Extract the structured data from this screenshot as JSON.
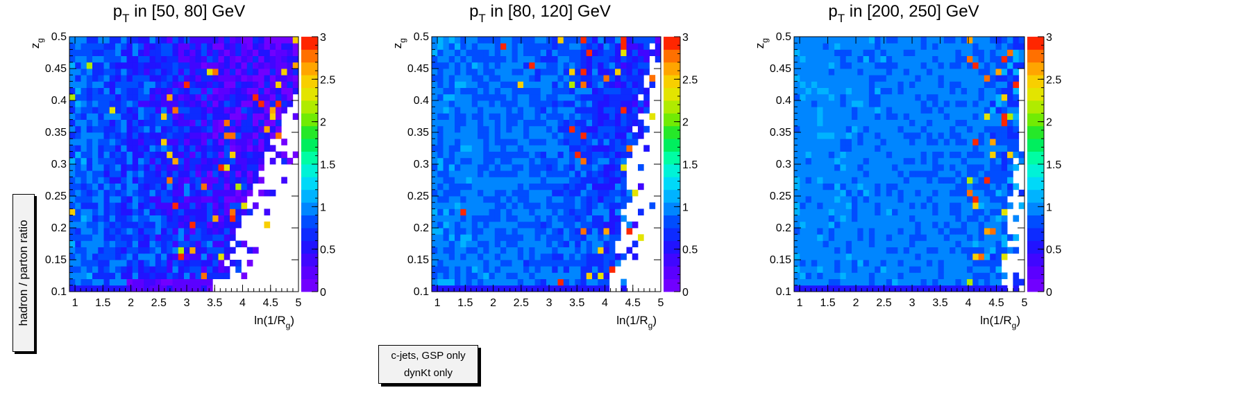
{
  "figure": {
    "ylabel_box": "hadron / parton ratio",
    "note_lines": [
      "c-jets, GSP only",
      "dynKt only"
    ]
  },
  "chart_data": [
    {
      "type": "heatmap",
      "title_base": "p",
      "title_sub": "T",
      "title_rest": " in [50, 80] GeV",
      "xlabel": "ln(1/R",
      "xlabel_sub": "g",
      "xlabel_end": ")",
      "ylabel": "z",
      "ylabel_sub": "g",
      "xlim": [
        0.9,
        5.0
      ],
      "ylim": [
        0.1,
        0.5
      ],
      "xticks": [
        "1",
        "1.5",
        "2",
        "2.5",
        "3",
        "3.5",
        "4",
        "4.5",
        "5"
      ],
      "yticks": [
        "0.1",
        "0.15",
        "0.2",
        "0.25",
        "0.3",
        "0.35",
        "0.4",
        "0.45",
        "0.5"
      ],
      "zlim": [
        0,
        3
      ],
      "zticks": [
        "0",
        "0.5",
        "1",
        "1.5",
        "2",
        "2.5",
        "3"
      ],
      "grid": {
        "nx": 40,
        "ny": 40,
        "seed": 11
      },
      "notes": "Ratio ~0.7-1.0 at low ln(1/Rg); falls to ~0.3 (violet/blue) at large ln(1/Rg) with sparse red outliers; empty region at large ln(1/Rg), low zg."
    },
    {
      "type": "heatmap",
      "title_base": "p",
      "title_sub": "T",
      "title_rest": " in [80, 120] GeV",
      "xlabel": "ln(1/R",
      "xlabel_sub": "g",
      "xlabel_end": ")",
      "ylabel": "z",
      "ylabel_sub": "g",
      "xlim": [
        0.9,
        5.0
      ],
      "ylim": [
        0.1,
        0.5
      ],
      "xticks": [
        "1",
        "1.5",
        "2",
        "2.5",
        "3",
        "3.5",
        "4",
        "4.5",
        "5"
      ],
      "yticks": [
        "0.1",
        "0.15",
        "0.2",
        "0.25",
        "0.3",
        "0.35",
        "0.4",
        "0.45",
        "0.5"
      ],
      "zlim": [
        0,
        3
      ],
      "zticks": [
        "0",
        "0.5",
        "1",
        "1.5",
        "2",
        "2.5",
        "3"
      ],
      "grid": {
        "nx": 40,
        "ny": 40,
        "seed": 23
      },
      "notes": "Ratio ~0.8-1.0 across most of the plane; drops to ~0.3 at top right; red outliers near ln(1/Rg)=3.5-4.5."
    },
    {
      "type": "heatmap",
      "title_base": "p",
      "title_sub": "T",
      "title_rest": " in [200, 250] GeV",
      "xlabel": "ln(1/R",
      "xlabel_sub": "g",
      "xlabel_end": ")",
      "ylabel": "z",
      "ylabel_sub": "g",
      "xlim": [
        0.9,
        5.0
      ],
      "ylim": [
        0.1,
        0.5
      ],
      "xticks": [
        "1",
        "1.5",
        "2",
        "2.5",
        "3",
        "3.5",
        "4",
        "4.5",
        "5"
      ],
      "yticks": [
        "0.1",
        "0.15",
        "0.2",
        "0.25",
        "0.3",
        "0.35",
        "0.4",
        "0.45",
        "0.5"
      ],
      "zlim": [
        0,
        3
      ],
      "zticks": [
        "0",
        "0.5",
        "1",
        "1.5",
        "2",
        "2.5",
        "3"
      ],
      "grid": {
        "nx": 40,
        "ny": 40,
        "seed": 37
      },
      "notes": "Ratio ~0.9-1.0 nearly uniform; fluctuations and red outliers only at ln(1/Rg) > 4."
    }
  ]
}
